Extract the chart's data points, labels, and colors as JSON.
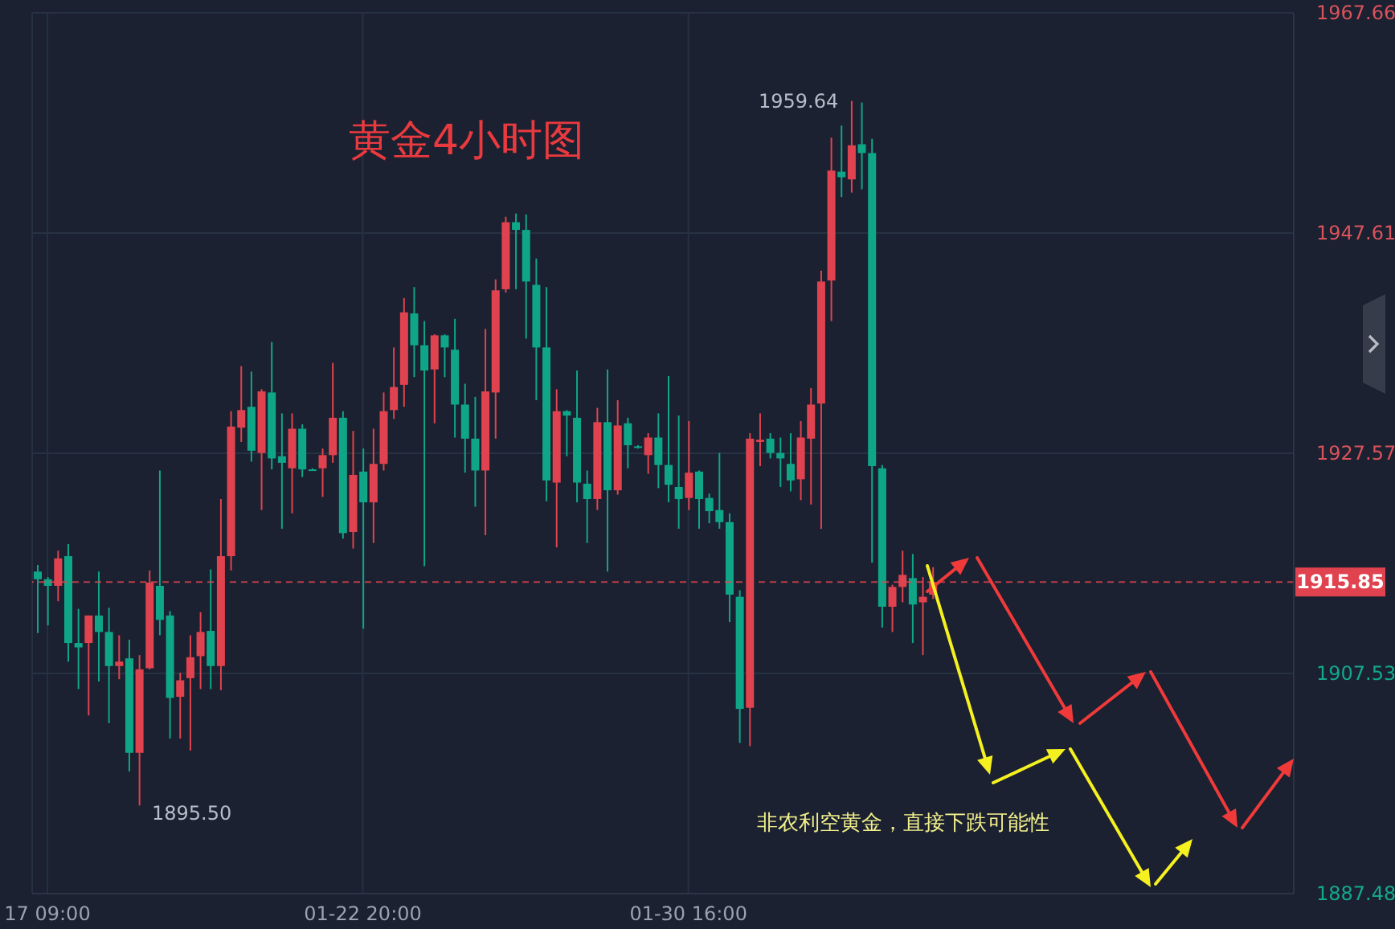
{
  "chart_data": {
    "type": "candlestick",
    "title": "黄金4小时图",
    "categories": [
      null,
      "17 09:00",
      null,
      null,
      null,
      null,
      null,
      null,
      null,
      null,
      null,
      null,
      null,
      null,
      null,
      null,
      null,
      null,
      null,
      null,
      null,
      null,
      null,
      null,
      null,
      null,
      null,
      null,
      null,
      null,
      null,
      null,
      "01-22 20:00",
      null,
      null,
      null,
      null,
      null,
      null,
      null,
      null,
      null,
      null,
      null,
      null,
      null,
      null,
      null,
      null,
      null,
      null,
      null,
      null,
      null,
      null,
      null,
      null,
      null,
      null,
      null,
      null,
      null,
      null,
      null,
      "01-30 16:00",
      null,
      null,
      null,
      null,
      null,
      null,
      null,
      null,
      null,
      null,
      null,
      null,
      null,
      null,
      null,
      null,
      null,
      null,
      null,
      null,
      null,
      null,
      null,
      null,
      null,
      null,
      null,
      null,
      null,
      null,
      null,
      null,
      null,
      null,
      null,
      null,
      null,
      null,
      null,
      null,
      null,
      null,
      null,
      null,
      null,
      null,
      null,
      null,
      null,
      null,
      null,
      null,
      null,
      null,
      null,
      null,
      null,
      null,
      null
    ],
    "ohlc": [
      [
        1916.8,
        1917.4,
        1911.2,
        1916.1
      ],
      [
        1916.1,
        1916.3,
        1911.9,
        1915.5
      ],
      [
        1915.5,
        1918.7,
        1914.1,
        1918.0
      ],
      [
        1918.2,
        1919.3,
        1908.6,
        1910.3
      ],
      [
        1910.3,
        1913.4,
        1906.1,
        1909.9
      ],
      [
        1910.3,
        1912.8,
        1903.7,
        1912.8
      ],
      [
        1912.8,
        1916.8,
        1906.8,
        1911.3
      ],
      [
        1911.3,
        1913.5,
        1903.0,
        1908.2
      ],
      [
        1908.2,
        1911.0,
        1907.0,
        1908.6
      ],
      [
        1908.9,
        1910.6,
        1898.6,
        1900.3
      ],
      [
        1900.3,
        1909.2,
        1895.5,
        1907.9
      ],
      [
        1908.0,
        1916.9,
        1907.9,
        1915.8
      ],
      [
        1915.5,
        1926.0,
        1911.0,
        1912.4
      ],
      [
        1912.8,
        1913.2,
        1901.6,
        1905.3
      ],
      [
        1905.4,
        1907.6,
        1901.6,
        1906.9
      ],
      [
        1907.1,
        1911.0,
        1900.5,
        1909.0
      ],
      [
        1909.1,
        1913.1,
        1906.1,
        1911.3
      ],
      [
        1911.4,
        1917.0,
        1906.1,
        1908.2
      ],
      [
        1908.2,
        1923.4,
        1906.0,
        1918.2
      ],
      [
        1918.2,
        1931.4,
        1916.9,
        1930.0
      ],
      [
        1929.9,
        1935.5,
        1928.6,
        1931.5
      ],
      [
        1931.8,
        1935.0,
        1926.8,
        1927.8
      ],
      [
        1927.6,
        1933.4,
        1922.4,
        1933.2
      ],
      [
        1933.1,
        1937.7,
        1926.1,
        1927.1
      ],
      [
        1927.3,
        1931.2,
        1920.7,
        1926.7
      ],
      [
        1926.2,
        1931.2,
        1922.1,
        1929.8
      ],
      [
        1929.8,
        1930.2,
        1925.4,
        1926.1
      ],
      [
        1926.1,
        1926.2,
        1926.0,
        1926.0
      ],
      [
        1926.2,
        1928.0,
        1923.6,
        1927.4
      ],
      [
        1927.4,
        1935.8,
        1926.7,
        1930.8
      ],
      [
        1930.8,
        1931.4,
        1919.8,
        1920.3
      ],
      [
        1920.4,
        1929.6,
        1918.9,
        1925.6
      ],
      [
        1925.9,
        1928.0,
        1911.6,
        1923.1
      ],
      [
        1923.1,
        1929.8,
        1919.4,
        1926.6
      ],
      [
        1926.6,
        1933.1,
        1926.0,
        1931.4
      ],
      [
        1931.5,
        1937.2,
        1930.7,
        1933.6
      ],
      [
        1933.8,
        1941.7,
        1931.8,
        1940.4
      ],
      [
        1940.3,
        1942.7,
        1934.5,
        1937.4
      ],
      [
        1937.4,
        1939.6,
        1917.3,
        1935.1
      ],
      [
        1935.2,
        1938.4,
        1930.3,
        1938.3
      ],
      [
        1938.3,
        1938.4,
        1934.5,
        1937.2
      ],
      [
        1937.0,
        1939.8,
        1929.0,
        1932.0
      ],
      [
        1932.0,
        1933.9,
        1925.8,
        1928.9
      ],
      [
        1928.9,
        1932.7,
        1922.7,
        1926.0
      ],
      [
        1926.0,
        1938.9,
        1920.1,
        1933.2
      ],
      [
        1933.1,
        1943.4,
        1928.9,
        1942.4
      ],
      [
        1942.5,
        1949.1,
        1942.2,
        1948.6
      ],
      [
        1948.6,
        1949.4,
        1942.5,
        1947.9
      ],
      [
        1947.9,
        1949.3,
        1938.0,
        1943.2
      ],
      [
        1942.9,
        1945.3,
        1932.4,
        1937.2
      ],
      [
        1937.2,
        1942.7,
        1923.2,
        1925.1
      ],
      [
        1924.9,
        1933.4,
        1919.0,
        1931.4
      ],
      [
        1931.4,
        1931.5,
        1927.3,
        1931.0
      ],
      [
        1930.8,
        1935.1,
        1923.1,
        1924.9
      ],
      [
        1924.8,
        1926.0,
        1919.4,
        1923.4
      ],
      [
        1923.4,
        1931.7,
        1922.4,
        1930.4
      ],
      [
        1930.4,
        1935.2,
        1916.8,
        1924.2
      ],
      [
        1924.2,
        1932.4,
        1923.8,
        1930.1
      ],
      [
        1930.3,
        1930.8,
        1926.2,
        1928.3
      ],
      [
        1928.2,
        1928.3,
        1928.0,
        1928.1
      ],
      [
        1927.4,
        1929.4,
        1925.7,
        1929.0
      ],
      [
        1929.0,
        1931.2,
        1924.4,
        1926.5
      ],
      [
        1926.5,
        1934.6,
        1923.1,
        1924.7
      ],
      [
        1924.5,
        1931.0,
        1920.7,
        1923.4
      ],
      [
        1923.5,
        1930.5,
        1922.4,
        1925.8
      ],
      [
        1925.9,
        1926.0,
        1920.7,
        1923.4
      ],
      [
        1923.5,
        1923.9,
        1921.2,
        1922.3
      ],
      [
        1922.4,
        1927.6,
        1920.7,
        1921.3
      ],
      [
        1921.3,
        1922.1,
        1912.2,
        1914.7
      ],
      [
        1914.5,
        1915.1,
        1901.2,
        1904.3
      ],
      [
        1904.4,
        1929.4,
        1900.9,
        1928.9
      ],
      [
        1928.6,
        1931.2,
        1926.4,
        1928.8
      ],
      [
        1928.9,
        1929.4,
        1927.1,
        1927.6
      ],
      [
        1927.6,
        1929.0,
        1924.5,
        1927.1
      ],
      [
        1926.6,
        1929.4,
        1924.1,
        1925.1
      ],
      [
        1925.2,
        1930.5,
        1923.3,
        1929.0
      ],
      [
        1928.9,
        1933.5,
        1922.9,
        1932.0
      ],
      [
        1932.1,
        1944.2,
        1920.7,
        1943.2
      ],
      [
        1943.3,
        1956.3,
        1939.6,
        1953.3
      ],
      [
        1953.2,
        1957.4,
        1950.9,
        1952.7
      ],
      [
        1952.5,
        1959.64,
        1951.3,
        1955.6
      ],
      [
        1955.7,
        1959.5,
        1951.6,
        1954.9
      ],
      [
        1954.9,
        1956.2,
        1917.6,
        1926.4
      ],
      [
        1926.2,
        1926.5,
        1911.7,
        1913.6
      ],
      [
        1913.6,
        1915.6,
        1911.3,
        1915.4
      ],
      [
        1915.4,
        1918.7,
        1914.0,
        1916.5
      ],
      [
        1916.2,
        1918.4,
        1910.3,
        1913.8
      ],
      [
        1914.0,
        1916.3,
        1909.2,
        1914.5
      ],
      [
        1914.7,
        1917.2,
        1914.3,
        1915.85
      ],
      null,
      null,
      null,
      null,
      null,
      null,
      null,
      null,
      null,
      null,
      null,
      null,
      null,
      null,
      null,
      null,
      null,
      null,
      null,
      null,
      null,
      null,
      null,
      null,
      null,
      null,
      null,
      null,
      null,
      null,
      null,
      null,
      null,
      null,
      null
    ],
    "colors": [
      "#0fa688",
      "#0fa688",
      "#e0434f",
      "#0fa688",
      "#0fa688",
      "#e0434f",
      "#0fa688",
      "#0fa688",
      "#e0434f",
      "#0fa688",
      "#e0434f",
      "#e0434f",
      "#0fa688",
      "#0fa688",
      "#e0434f",
      "#e0434f",
      "#e0434f",
      "#0fa688",
      "#e0434f",
      "#e0434f",
      "#e0434f",
      "#0fa688",
      "#e0434f",
      "#0fa688",
      "#0fa688",
      "#e0434f",
      "#0fa688",
      "#0fa688",
      "#e0434f",
      "#e0434f",
      "#0fa688",
      "#e0434f",
      "#0fa688",
      "#e0434f",
      "#e0434f",
      "#e0434f",
      "#e0434f",
      "#0fa688",
      "#0fa688",
      "#e0434f",
      "#0fa688",
      "#0fa688",
      "#0fa688",
      "#0fa688",
      "#e0434f",
      "#e0434f",
      "#e0434f",
      "#0fa688",
      "#0fa688",
      "#0fa688",
      "#0fa688",
      "#e0434f",
      "#0fa688",
      "#0fa688",
      "#0fa688",
      "#e0434f",
      "#0fa688",
      "#e0434f",
      "#0fa688",
      "#0fa688",
      "#e0434f",
      "#0fa688",
      "#0fa688",
      "#0fa688",
      "#e0434f",
      "#0fa688",
      "#0fa688",
      "#0fa688",
      "#0fa688",
      "#0fa688",
      "#e0434f",
      "#e0434f",
      "#0fa688",
      "#0fa688",
      "#0fa688",
      "#e0434f",
      "#e0434f",
      "#e0434f",
      "#e0434f",
      "#0fa688",
      "#e0434f",
      "#0fa688",
      "#0fa688",
      "#0fa688",
      "#e0434f",
      "#e0434f",
      "#0fa688",
      "#e0434f",
      "#e0434f",
      null,
      null,
      null,
      null,
      null,
      null,
      null,
      null,
      null,
      null,
      null,
      null,
      null,
      null,
      null,
      null,
      null,
      null,
      null,
      null,
      null,
      null,
      null,
      null,
      null,
      null,
      null,
      null,
      null,
      null,
      null,
      null,
      null,
      null,
      null
    ],
    "ylim": [
      1887.48,
      1967.66
    ],
    "yticks": [
      1887.48,
      1907.53,
      1927.57,
      1947.61,
      1967.66
    ],
    "grid": true,
    "ref_lines": [
      {
        "axis": "y",
        "value": 1915.85,
        "label": "1915.85",
        "color": "#e0434f",
        "line_style": "dashed"
      }
    ],
    "annotations": [
      "1959.64",
      "1895.50",
      "非农利空黄金，直接下跌可能性"
    ]
  }
}
